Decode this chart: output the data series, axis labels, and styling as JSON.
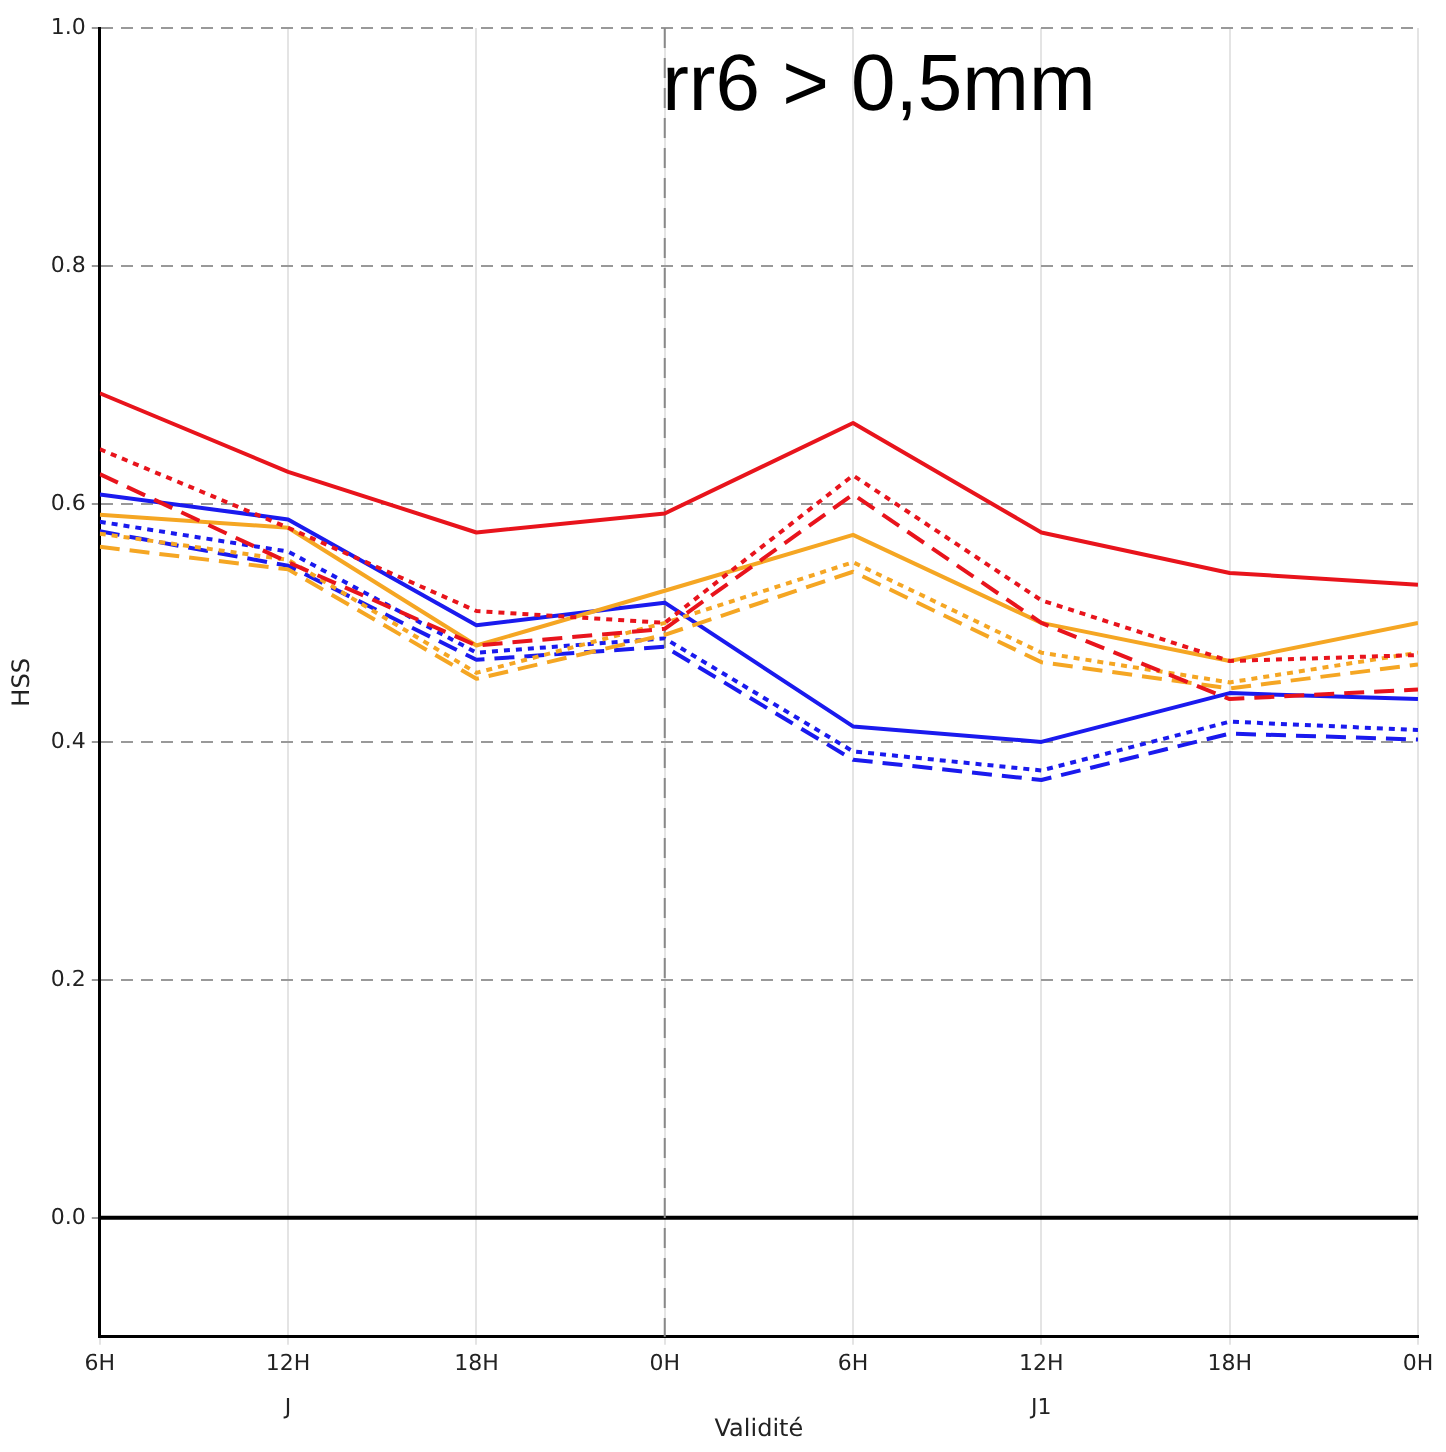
{
  "chart_data": {
    "type": "line",
    "title": "rr6 > 0,5mm",
    "xlabel": "Validité",
    "ylabel": "HSS",
    "categories": [
      "6H",
      "12H",
      "18H",
      "0H",
      "6H",
      "12H",
      "18H",
      "0H"
    ],
    "series": [
      {
        "color": "#e8141c",
        "line_style": "solid",
        "values": [
          0.693,
          0.627,
          0.576,
          0.592,
          0.668,
          0.576,
          0.542,
          0.532
        ]
      },
      {
        "color": "#e8141c",
        "line_style": "dotted",
        "values": [
          0.646,
          0.58,
          0.51,
          0.5,
          0.624,
          0.519,
          0.468,
          0.473
        ]
      },
      {
        "color": "#e8141c",
        "line_style": "dashed",
        "values": [
          0.625,
          0.551,
          0.481,
          0.495,
          0.608,
          0.5,
          0.436,
          0.444
        ]
      },
      {
        "color": "#f5a623",
        "line_style": "solid",
        "values": [
          0.591,
          0.58,
          0.481,
          0.527,
          0.574,
          0.5,
          0.468,
          0.5
        ]
      },
      {
        "color": "#f5a623",
        "line_style": "dotted",
        "values": [
          0.575,
          0.553,
          0.458,
          0.5,
          0.551,
          0.475,
          0.45,
          0.475
        ]
      },
      {
        "color": "#f5a623",
        "line_style": "dashed",
        "values": [
          0.564,
          0.545,
          0.453,
          0.49,
          0.543,
          0.467,
          0.445,
          0.465
        ]
      },
      {
        "color": "#1a1aee",
        "line_style": "solid",
        "values": [
          0.608,
          0.587,
          0.498,
          0.517,
          0.413,
          0.4,
          0.441,
          0.436
        ]
      },
      {
        "color": "#1a1aee",
        "line_style": "dotted",
        "values": [
          0.585,
          0.56,
          0.475,
          0.487,
          0.392,
          0.376,
          0.417,
          0.41
        ]
      },
      {
        "color": "#1a1aee",
        "line_style": "dashed",
        "values": [
          0.577,
          0.548,
          0.469,
          0.48,
          0.385,
          0.368,
          0.407,
          0.402
        ]
      }
    ],
    "ylim": [
      -0.1,
      1.0
    ],
    "yticks": [
      {
        "value": 0,
        "label": "0.0"
      },
      {
        "value": 0.2,
        "label": "0.2"
      },
      {
        "value": 0.4,
        "label": "0.4"
      },
      {
        "value": 0.6,
        "label": "0.6"
      },
      {
        "value": 0.8,
        "label": "0.8"
      },
      {
        "value": 1.0,
        "label": "1.0"
      }
    ],
    "ref_lines": [
      {
        "axis": "y",
        "value": 0,
        "color": "#000000",
        "line_style": "solid"
      },
      {
        "axis": "x",
        "value": "0H",
        "color": "#888888",
        "line_style": "dashed"
      }
    ],
    "annotations": [
      "J",
      "J1"
    ],
    "grid": true,
    "legend": false,
    "marker": "none"
  }
}
